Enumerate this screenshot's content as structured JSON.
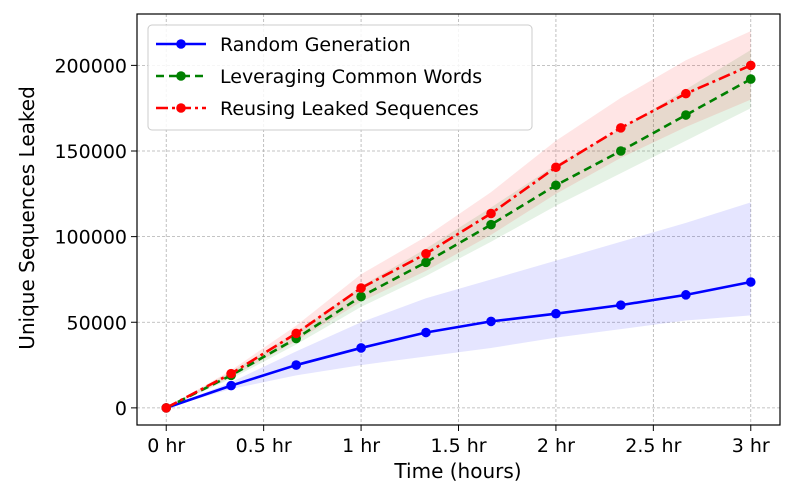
{
  "chart_data": {
    "type": "line",
    "title": "",
    "xlabel": "Time (hours)",
    "ylabel": "Unique Sequences Leaked",
    "xlim": [
      -0.15,
      3.15
    ],
    "ylim": [
      -10000,
      230000
    ],
    "grid": true,
    "legend_position": "top-left",
    "x": [
      0,
      0.333,
      0.667,
      1.0,
      1.333,
      1.667,
      2.0,
      2.333,
      2.667,
      3.0
    ],
    "x_ticks": [
      {
        "value": 0,
        "label": "0 hr"
      },
      {
        "value": 0.5,
        "label": "0.5 hr"
      },
      {
        "value": 1,
        "label": "1 hr"
      },
      {
        "value": 1.5,
        "label": "1.5 hr"
      },
      {
        "value": 2,
        "label": "2 hr"
      },
      {
        "value": 2.5,
        "label": "2.5 hr"
      },
      {
        "value": 3,
        "label": "3 hr"
      }
    ],
    "y_ticks": [
      {
        "value": 0,
        "label": "0"
      },
      {
        "value": 50000,
        "label": "50000"
      },
      {
        "value": 100000,
        "label": "100000"
      },
      {
        "value": 150000,
        "label": "150000"
      },
      {
        "value": 200000,
        "label": "200000"
      }
    ],
    "series": [
      {
        "name": "Random Generation",
        "color": "#0000ff",
        "line_style": "solid",
        "values": [
          0,
          13000,
          25000,
          35000,
          44000,
          50500,
          55000,
          60000,
          66000,
          73500
        ],
        "lower": [
          0,
          11000,
          19000,
          25000,
          30000,
          35000,
          41000,
          46000,
          51000,
          54000
        ],
        "upper": [
          0,
          15000,
          33000,
          50000,
          64000,
          75000,
          86000,
          97000,
          108000,
          120000
        ]
      },
      {
        "name": "Leveraging Common Words",
        "color": "#008000",
        "line_style": "dashed",
        "values": [
          0,
          19000,
          40500,
          65000,
          85000,
          107000,
          130000,
          150000,
          171000,
          192000
        ],
        "lower": [
          0,
          17000,
          37000,
          59000,
          77000,
          97000,
          118000,
          137000,
          156000,
          175000
        ],
        "upper": [
          0,
          21000,
          44000,
          71000,
          93000,
          117000,
          142000,
          163000,
          186000,
          209000
        ]
      },
      {
        "name": "Reusing Leaked Sequences",
        "color": "#ff0000",
        "line_style": "dashdot",
        "values": [
          0,
          20000,
          43500,
          70000,
          90000,
          113500,
          140500,
          163500,
          183500,
          200000
        ],
        "lower": [
          0,
          18000,
          39000,
          62000,
          80000,
          101000,
          125000,
          146000,
          164000,
          180000
        ],
        "upper": [
          0,
          22000,
          48000,
          78000,
          100000,
          126000,
          156000,
          181000,
          203000,
          220000
        ]
      }
    ]
  }
}
